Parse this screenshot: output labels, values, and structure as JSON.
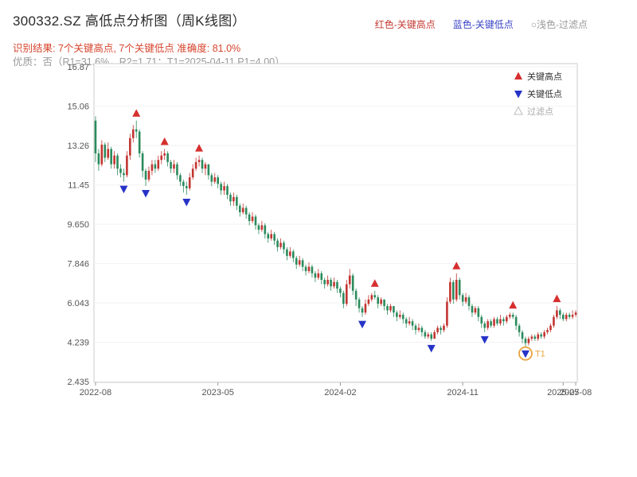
{
  "header": {
    "title": "300332.SZ 高低点分析图（周K线图）",
    "legend_top": [
      {
        "label": "红色-关键高点",
        "color": "#c43a32"
      },
      {
        "label": "蓝色-关键低点",
        "color": "#3a44c4"
      },
      {
        "label": "○浅色-过滤点",
        "color": "#999999"
      }
    ],
    "result_line": "识别结果: 7个关键高点, 7个关键低点  准确度: 81.0%",
    "result_color": "#d6442c",
    "quality_line": "优质：否（R1=31.6%，R2=1.71；T1=2025-04-11 P1=4.00）"
  },
  "chart_data": {
    "type": "candlestick",
    "title": "300332.SZ 高低点分析图（周K线图）",
    "ylim": [
      2.435,
      16.87
    ],
    "y_ticks": [
      16.87,
      15.06,
      13.26,
      11.45,
      9.65,
      7.846,
      6.043,
      4.239,
      2.435
    ],
    "y_tick_labels": [
      "16.87",
      "15.06",
      "13.26",
      "11.45",
      "9.650",
      "7.846",
      "6.043",
      "4.239",
      "2.435"
    ],
    "x_ticks": [
      {
        "week": 0,
        "label": "2022-08"
      },
      {
        "week": 39,
        "label": "2023-05"
      },
      {
        "week": 78,
        "label": "2024-02"
      },
      {
        "week": 117,
        "label": "2024-11"
      },
      {
        "week": 149,
        "label": "2025-07"
      },
      {
        "week": 153,
        "label": "2025-08"
      }
    ],
    "up_color": "#c23531",
    "down_color": "#2a8a5c",
    "high_color": "#d62f2f",
    "low_color": "#2633c8",
    "grid_color": "#f2f2f2",
    "legend": [
      {
        "name": "关键高点",
        "marker": "up-triangle",
        "color": "#d62f2f"
      },
      {
        "name": "关键低点",
        "marker": "down-triangle",
        "color": "#2633c8"
      },
      {
        "name": "过滤点",
        "marker": "up-triangle-outline",
        "color": "#bbbbbb"
      }
    ],
    "candles": [
      [
        14.4,
        14.6,
        12.5,
        12.9
      ],
      [
        12.9,
        13.1,
        12.1,
        12.4
      ],
      [
        12.4,
        13.5,
        12.3,
        13.3
      ],
      [
        13.3,
        13.4,
        12.5,
        12.7
      ],
      [
        12.7,
        13.4,
        12.6,
        13.1
      ],
      [
        13.1,
        13.2,
        12.2,
        12.4
      ],
      [
        12.4,
        13.0,
        12.2,
        12.8
      ],
      [
        12.8,
        12.9,
        11.9,
        12.2
      ],
      [
        12.2,
        12.4,
        11.8,
        12.0
      ],
      [
        12.0,
        12.2,
        11.6,
        11.9
      ],
      [
        11.9,
        13.0,
        11.8,
        12.8
      ],
      [
        12.8,
        13.8,
        12.6,
        13.6
      ],
      [
        13.6,
        14.2,
        13.4,
        14.0
      ],
      [
        14.0,
        14.4,
        13.6,
        13.9
      ],
      [
        13.9,
        14.0,
        12.7,
        12.9
      ],
      [
        12.9,
        13.0,
        11.8,
        12.1
      ],
      [
        12.1,
        12.2,
        11.4,
        11.7
      ],
      [
        11.7,
        12.3,
        11.6,
        12.1
      ],
      [
        12.1,
        12.6,
        11.9,
        12.4
      ],
      [
        12.4,
        12.6,
        12.0,
        12.2
      ],
      [
        12.2,
        12.8,
        12.1,
        12.6
      ],
      [
        12.6,
        13.0,
        12.4,
        12.8
      ],
      [
        12.8,
        13.1,
        12.6,
        12.9
      ],
      [
        12.9,
        13.0,
        12.3,
        12.5
      ],
      [
        12.5,
        12.6,
        12.0,
        12.2
      ],
      [
        12.2,
        12.6,
        12.0,
        12.4
      ],
      [
        12.4,
        12.5,
        11.7,
        11.9
      ],
      [
        11.9,
        12.0,
        11.4,
        11.6
      ],
      [
        11.6,
        11.7,
        11.1,
        11.4
      ],
      [
        11.4,
        11.6,
        11.0,
        11.3
      ],
      [
        11.3,
        12.0,
        11.2,
        11.8
      ],
      [
        11.8,
        12.4,
        11.7,
        12.2
      ],
      [
        12.2,
        12.7,
        12.1,
        12.5
      ],
      [
        12.5,
        12.8,
        12.3,
        12.6
      ],
      [
        12.6,
        12.7,
        12.0,
        12.2
      ],
      [
        12.2,
        12.5,
        11.9,
        12.4
      ],
      [
        12.4,
        12.4,
        11.7,
        11.9
      ],
      [
        11.9,
        12.0,
        11.4,
        11.6
      ],
      [
        11.6,
        12.0,
        11.5,
        11.8
      ],
      [
        11.8,
        11.9,
        11.3,
        11.5
      ],
      [
        11.5,
        11.6,
        11.0,
        11.2
      ],
      [
        11.2,
        11.6,
        11.0,
        11.4
      ],
      [
        11.4,
        11.5,
        10.8,
        11.0
      ],
      [
        11.0,
        11.1,
        10.5,
        10.7
      ],
      [
        10.7,
        11.1,
        10.5,
        10.9
      ],
      [
        10.9,
        11.0,
        10.3,
        10.5
      ],
      [
        10.5,
        10.6,
        10.0,
        10.2
      ],
      [
        10.2,
        10.6,
        10.1,
        10.4
      ],
      [
        10.4,
        10.5,
        9.9,
        10.1
      ],
      [
        10.1,
        10.2,
        9.6,
        9.8
      ],
      [
        9.8,
        10.2,
        9.7,
        10.0
      ],
      [
        10.0,
        10.1,
        9.4,
        9.6
      ],
      [
        9.6,
        9.7,
        9.2,
        9.4
      ],
      [
        9.4,
        9.8,
        9.3,
        9.6
      ],
      [
        9.6,
        9.7,
        9.0,
        9.2
      ],
      [
        9.2,
        9.3,
        8.8,
        9.0
      ],
      [
        9.0,
        9.4,
        8.9,
        9.2
      ],
      [
        9.2,
        9.3,
        8.7,
        8.9
      ],
      [
        8.9,
        9.0,
        8.4,
        8.6
      ],
      [
        8.6,
        9.0,
        8.5,
        8.8
      ],
      [
        8.8,
        8.9,
        8.3,
        8.5
      ],
      [
        8.5,
        8.6,
        8.0,
        8.2
      ],
      [
        8.2,
        8.6,
        8.1,
        8.4
      ],
      [
        8.4,
        8.5,
        7.9,
        8.1
      ],
      [
        8.1,
        8.2,
        7.6,
        7.8
      ],
      [
        7.8,
        8.2,
        7.7,
        8.0
      ],
      [
        8.0,
        8.1,
        7.5,
        7.7
      ],
      [
        7.7,
        7.8,
        7.3,
        7.5
      ],
      [
        7.5,
        7.9,
        7.4,
        7.7
      ],
      [
        7.7,
        7.8,
        7.2,
        7.4
      ],
      [
        7.4,
        7.5,
        7.0,
        7.2
      ],
      [
        7.2,
        7.6,
        7.1,
        7.4
      ],
      [
        7.4,
        7.5,
        6.9,
        7.1
      ],
      [
        7.1,
        7.2,
        6.7,
        6.9
      ],
      [
        6.9,
        7.3,
        6.8,
        7.1
      ],
      [
        7.1,
        7.2,
        6.6,
        6.8
      ],
      [
        6.8,
        7.2,
        6.7,
        7.0
      ],
      [
        7.0,
        7.1,
        6.5,
        6.7
      ],
      [
        6.7,
        6.8,
        6.3,
        6.5
      ],
      [
        6.5,
        6.6,
        5.8,
        6.0
      ],
      [
        6.0,
        7.1,
        5.9,
        6.9
      ],
      [
        6.9,
        7.6,
        6.7,
        7.3
      ],
      [
        7.3,
        7.4,
        6.4,
        6.6
      ],
      [
        6.6,
        6.7,
        5.9,
        6.2
      ],
      [
        6.2,
        6.3,
        5.6,
        5.8
      ],
      [
        5.8,
        5.9,
        5.4,
        5.6
      ],
      [
        5.6,
        6.2,
        5.5,
        6.0
      ],
      [
        6.0,
        6.4,
        5.9,
        6.2
      ],
      [
        6.2,
        6.5,
        6.1,
        6.4
      ],
      [
        6.4,
        6.6,
        6.2,
        6.3
      ],
      [
        6.3,
        6.4,
        5.8,
        6.0
      ],
      [
        6.0,
        6.3,
        5.9,
        6.2
      ],
      [
        6.2,
        6.2,
        5.7,
        5.9
      ],
      [
        5.9,
        6.0,
        5.5,
        5.7
      ],
      [
        5.7,
        6.0,
        5.6,
        5.9
      ],
      [
        5.9,
        5.9,
        5.4,
        5.6
      ],
      [
        5.6,
        5.7,
        5.2,
        5.4
      ],
      [
        5.4,
        5.7,
        5.3,
        5.5
      ],
      [
        5.5,
        5.6,
        5.1,
        5.3
      ],
      [
        5.3,
        5.4,
        4.9,
        5.1
      ],
      [
        5.1,
        5.4,
        5.0,
        5.2
      ],
      [
        5.2,
        5.3,
        4.8,
        5.0
      ],
      [
        5.0,
        5.1,
        4.6,
        4.8
      ],
      [
        4.8,
        5.1,
        4.7,
        4.9
      ],
      [
        4.9,
        5.0,
        4.5,
        4.7
      ],
      [
        4.7,
        4.8,
        4.4,
        4.5
      ],
      [
        4.5,
        4.7,
        4.4,
        4.6
      ],
      [
        4.6,
        4.7,
        4.3,
        4.4
      ],
      [
        4.4,
        4.8,
        4.4,
        4.7
      ],
      [
        4.7,
        5.0,
        4.6,
        4.9
      ],
      [
        4.9,
        5.0,
        4.6,
        4.8
      ],
      [
        4.8,
        5.1,
        4.7,
        5.0
      ],
      [
        5.0,
        6.3,
        4.9,
        6.1
      ],
      [
        6.1,
        7.2,
        6.0,
        7.0
      ],
      [
        7.0,
        7.1,
        6.0,
        6.2
      ],
      [
        6.2,
        7.4,
        6.1,
        7.1
      ],
      [
        7.1,
        7.2,
        6.2,
        6.4
      ],
      [
        6.4,
        6.5,
        5.9,
        6.1
      ],
      [
        6.1,
        6.5,
        6.0,
        6.3
      ],
      [
        6.3,
        6.4,
        5.7,
        5.9
      ],
      [
        5.9,
        6.0,
        5.4,
        5.6
      ],
      [
        5.6,
        5.9,
        5.5,
        5.8
      ],
      [
        5.8,
        5.9,
        5.2,
        5.4
      ],
      [
        5.4,
        5.5,
        4.9,
        5.1
      ],
      [
        5.1,
        5.2,
        4.7,
        4.9
      ],
      [
        4.9,
        5.3,
        4.8,
        5.2
      ],
      [
        5.2,
        5.3,
        4.9,
        5.0
      ],
      [
        5.0,
        5.4,
        4.9,
        5.3
      ],
      [
        5.3,
        5.4,
        5.0,
        5.1
      ],
      [
        5.1,
        5.5,
        5.0,
        5.3
      ],
      [
        5.3,
        5.4,
        5.0,
        5.2
      ],
      [
        5.2,
        5.5,
        5.1,
        5.4
      ],
      [
        5.4,
        5.6,
        5.3,
        5.5
      ],
      [
        5.5,
        5.6,
        5.3,
        5.4
      ],
      [
        5.4,
        5.5,
        4.8,
        5.0
      ],
      [
        5.0,
        5.1,
        4.5,
        4.7
      ],
      [
        4.7,
        4.8,
        4.2,
        4.4
      ],
      [
        4.4,
        4.5,
        4.05,
        4.2
      ],
      [
        4.2,
        4.5,
        4.1,
        4.4
      ],
      [
        4.4,
        4.6,
        4.3,
        4.5
      ],
      [
        4.5,
        4.6,
        4.3,
        4.4
      ],
      [
        4.4,
        4.7,
        4.3,
        4.6
      ],
      [
        4.6,
        4.7,
        4.4,
        4.5
      ],
      [
        4.5,
        4.8,
        4.4,
        4.7
      ],
      [
        4.7,
        4.9,
        4.6,
        4.8
      ],
      [
        4.8,
        5.1,
        4.7,
        5.0
      ],
      [
        5.0,
        5.5,
        4.9,
        5.4
      ],
      [
        5.4,
        5.9,
        5.3,
        5.7
      ],
      [
        5.7,
        5.8,
        5.3,
        5.5
      ],
      [
        5.5,
        5.6,
        5.2,
        5.3
      ],
      [
        5.3,
        5.6,
        5.2,
        5.5
      ],
      [
        5.5,
        5.6,
        5.3,
        5.4
      ],
      [
        5.4,
        5.7,
        5.3,
        5.5
      ],
      [
        5.5,
        5.7,
        5.4,
        5.6
      ]
    ],
    "high_points": [
      {
        "week": 13,
        "price": 14.4
      },
      {
        "week": 22,
        "price": 13.1
      },
      {
        "week": 33,
        "price": 12.8
      },
      {
        "week": 89,
        "price": 6.6
      },
      {
        "week": 115,
        "price": 7.4
      },
      {
        "week": 133,
        "price": 5.6
      },
      {
        "week": 147,
        "price": 5.9
      }
    ],
    "low_points": [
      {
        "week": 9,
        "price": 11.6
      },
      {
        "week": 16,
        "price": 11.4
      },
      {
        "week": 29,
        "price": 11.0
      },
      {
        "week": 85,
        "price": 5.4
      },
      {
        "week": 107,
        "price": 4.3
      },
      {
        "week": 124,
        "price": 4.7
      },
      {
        "week": 137,
        "price": 4.05
      }
    ],
    "t1": {
      "week": 137,
      "price": 4.05,
      "label": "T1",
      "color": "#e8a33d"
    }
  }
}
